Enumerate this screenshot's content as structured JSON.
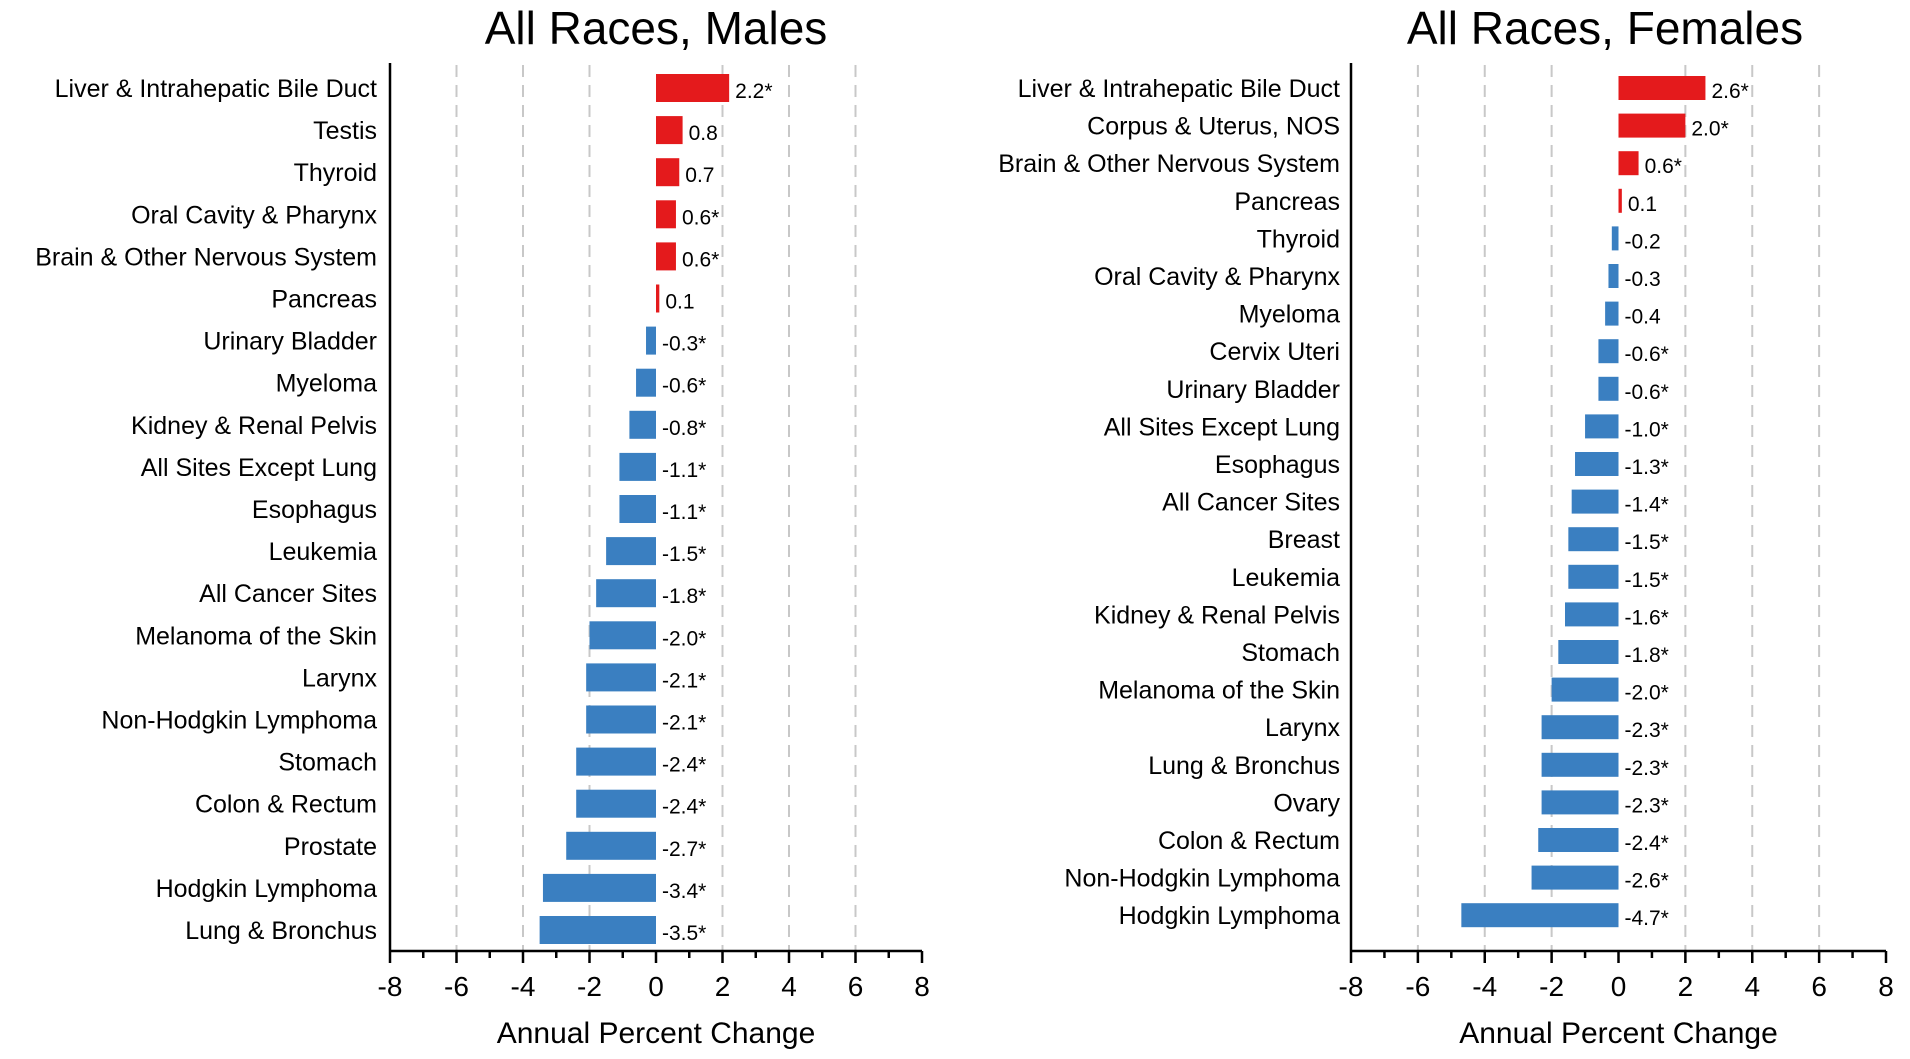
{
  "chart_data": [
    {
      "type": "bar",
      "orientation": "horizontal",
      "title": "All Races, Males",
      "xlabel": "Annual Percent Change",
      "xlim": [
        -8,
        8
      ],
      "xticks": [
        "-8",
        "-6",
        "-4",
        "-2",
        "0",
        "2",
        "4",
        "6",
        "8"
      ],
      "grid": "vertical dashed",
      "colors": {
        "positive": "#e41a1c",
        "negative": "#3a7fc1"
      },
      "categories": [
        "Liver & Intrahepatic Bile Duct",
        "Testis",
        "Thyroid",
        "Oral Cavity & Pharynx",
        "Brain & Other Nervous System",
        "Pancreas",
        "Urinary Bladder",
        "Myeloma",
        "Kidney & Renal Pelvis",
        "All Sites Except Lung",
        "Esophagus",
        "Leukemia",
        "All Cancer Sites",
        "Melanoma of the Skin",
        "Larynx",
        "Non-Hodgkin Lymphoma",
        "Stomach",
        "Colon & Rectum",
        "Prostate",
        "Hodgkin Lymphoma",
        "Lung & Bronchus"
      ],
      "values": [
        2.2,
        0.8,
        0.7,
        0.6,
        0.6,
        0.1,
        -0.3,
        -0.6,
        -0.8,
        -1.1,
        -1.1,
        -1.5,
        -1.8,
        -2.0,
        -2.1,
        -2.1,
        -2.4,
        -2.4,
        -2.7,
        -3.4,
        -3.5
      ],
      "labels": [
        "2.2*",
        "0.8",
        "0.7",
        "0.6*",
        "0.6*",
        "0.1",
        "-0.3*",
        "-0.6*",
        "-0.8*",
        "-1.1*",
        "-1.1*",
        "-1.5*",
        "-1.8*",
        "-2.0*",
        "-2.1*",
        "-2.1*",
        "-2.4*",
        "-2.4*",
        "-2.7*",
        "-3.4*",
        "-3.5*"
      ]
    },
    {
      "type": "bar",
      "orientation": "horizontal",
      "title": "All Races, Females",
      "xlabel": "Annual Percent Change",
      "xlim": [
        -8,
        8
      ],
      "xticks": [
        "-8",
        "-6",
        "-4",
        "-2",
        "0",
        "2",
        "4",
        "6",
        "8"
      ],
      "grid": "vertical dashed",
      "colors": {
        "positive": "#e41a1c",
        "negative": "#3a7fc1"
      },
      "categories": [
        "Liver & Intrahepatic Bile Duct",
        "Corpus & Uterus, NOS",
        "Brain & Other Nervous System",
        "Pancreas",
        "Thyroid",
        "Oral Cavity & Pharynx",
        "Myeloma",
        "Cervix Uteri",
        "Urinary Bladder",
        "All Sites Except Lung",
        "Esophagus",
        "All Cancer Sites",
        "Breast",
        "Leukemia",
        "Kidney & Renal Pelvis",
        "Stomach",
        "Melanoma of the Skin",
        "Larynx",
        "Lung & Bronchus",
        "Ovary",
        "Colon & Rectum",
        "Non-Hodgkin Lymphoma",
        "Hodgkin Lymphoma"
      ],
      "values": [
        2.6,
        2.0,
        0.6,
        0.1,
        -0.2,
        -0.3,
        -0.4,
        -0.6,
        -0.6,
        -1.0,
        -1.3,
        -1.4,
        -1.5,
        -1.5,
        -1.6,
        -1.8,
        -2.0,
        -2.3,
        -2.3,
        -2.3,
        -2.4,
        -2.6,
        -4.7
      ],
      "labels": [
        "2.6*",
        "2.0*",
        "0.6*",
        "0.1",
        "-0.2",
        "-0.3",
        "-0.4",
        "-0.6*",
        "-0.6*",
        "-1.0*",
        "-1.3*",
        "-1.4*",
        "-1.5*",
        "-1.5*",
        "-1.6*",
        "-1.8*",
        "-2.0*",
        "-2.3*",
        "-2.3*",
        "-2.3*",
        "-2.4*",
        "-2.6*",
        "-4.7*"
      ]
    }
  ]
}
